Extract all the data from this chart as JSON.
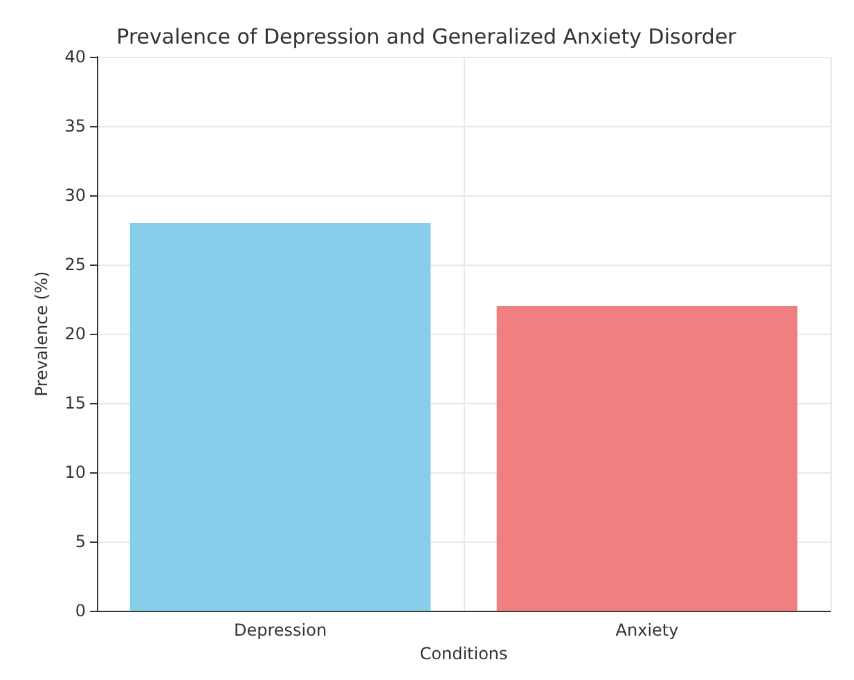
{
  "chart_data": {
    "type": "bar",
    "title": "Prevalence of Depression and Generalized Anxiety Disorder",
    "xlabel": "Conditions",
    "ylabel": "Prevalence (%)",
    "categories": [
      "Depression",
      "Anxiety"
    ],
    "values": [
      28,
      22
    ],
    "colors": [
      "#87ceeb",
      "#f08080"
    ],
    "ylim": [
      0,
      40
    ],
    "yticks": [
      0,
      5,
      10,
      15,
      20,
      25,
      30,
      35,
      40
    ],
    "grid": true
  }
}
